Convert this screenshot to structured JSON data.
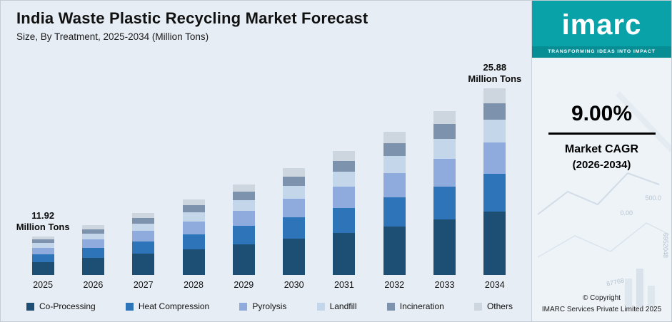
{
  "title": "India Waste Plastic Recycling Market Forecast",
  "subtitle": "Size, By Treatment, 2025-2034 (Million Tons)",
  "chart_data": {
    "type": "bar",
    "stacked": true,
    "title": "India Waste Plastic Recycling Market Forecast",
    "subtitle": "Size, By Treatment, 2025-2034 (Million Tons)",
    "unit": "Million Tons",
    "xlabel": "",
    "ylabel": "Million Tons",
    "ylim": [
      0,
      28
    ],
    "grid": false,
    "legend_position": "bottom",
    "categories": [
      "2025",
      "2026",
      "2027",
      "2028",
      "2029",
      "2030",
      "2031",
      "2032",
      "2033",
      "2034"
    ],
    "totals": [
      11.92,
      12.99,
      14.16,
      15.43,
      16.82,
      18.34,
      19.99,
      21.79,
      23.75,
      25.88
    ],
    "series": [
      {
        "name": "Co-Processing",
        "color": "#1d4e74",
        "values": [
          4.05,
          4.42,
          4.81,
          5.25,
          5.72,
          6.24,
          6.8,
          7.41,
          8.08,
          8.8
        ]
      },
      {
        "name": "Heat Compression",
        "color": "#2d74b8",
        "values": [
          2.38,
          2.6,
          2.83,
          3.09,
          3.36,
          3.67,
          4.0,
          4.36,
          4.75,
          5.18
        ]
      },
      {
        "name": "Pyrolysis",
        "color": "#8faadc",
        "values": [
          2.03,
          2.21,
          2.41,
          2.62,
          2.86,
          3.12,
          3.4,
          3.7,
          4.04,
          4.4
        ]
      },
      {
        "name": "Landfill",
        "color": "#c3d6ea",
        "values": [
          1.43,
          1.56,
          1.7,
          1.85,
          2.02,
          2.2,
          2.4,
          2.61,
          2.85,
          3.11
        ]
      },
      {
        "name": "Incineration",
        "color": "#7d93ad",
        "values": [
          1.07,
          1.17,
          1.27,
          1.39,
          1.51,
          1.65,
          1.8,
          1.96,
          2.14,
          2.33
        ]
      },
      {
        "name": "Others",
        "color": "#cdd6de",
        "values": [
          0.96,
          1.03,
          1.14,
          1.23,
          1.35,
          1.46,
          1.59,
          1.75,
          1.89,
          2.06
        ]
      }
    ],
    "annotations": [
      {
        "category": "2025",
        "line1": "11.92",
        "line2": "Million Tons"
      },
      {
        "category": "2034",
        "line1": "25.88",
        "line2": "Million Tons"
      }
    ]
  },
  "panel": {
    "brand": {
      "name": "imarc",
      "tagline": "TRANSFORMING IDEAS INTO IMPACT"
    },
    "cagr": {
      "value": "9.00%",
      "label": "Market CAGR",
      "period": "(2026-2034)"
    },
    "copyright": {
      "line1": "© Copyright",
      "line2": "IMARC Services Private Limited 2025"
    },
    "decor_numbers": [
      "500.0",
      "0.00",
      "6952048",
      "87768"
    ]
  },
  "colors": {
    "background": "#e6edf4",
    "brand_teal": "#0aa2a9",
    "tagline_teal": "#078e95",
    "text": "#111111"
  }
}
